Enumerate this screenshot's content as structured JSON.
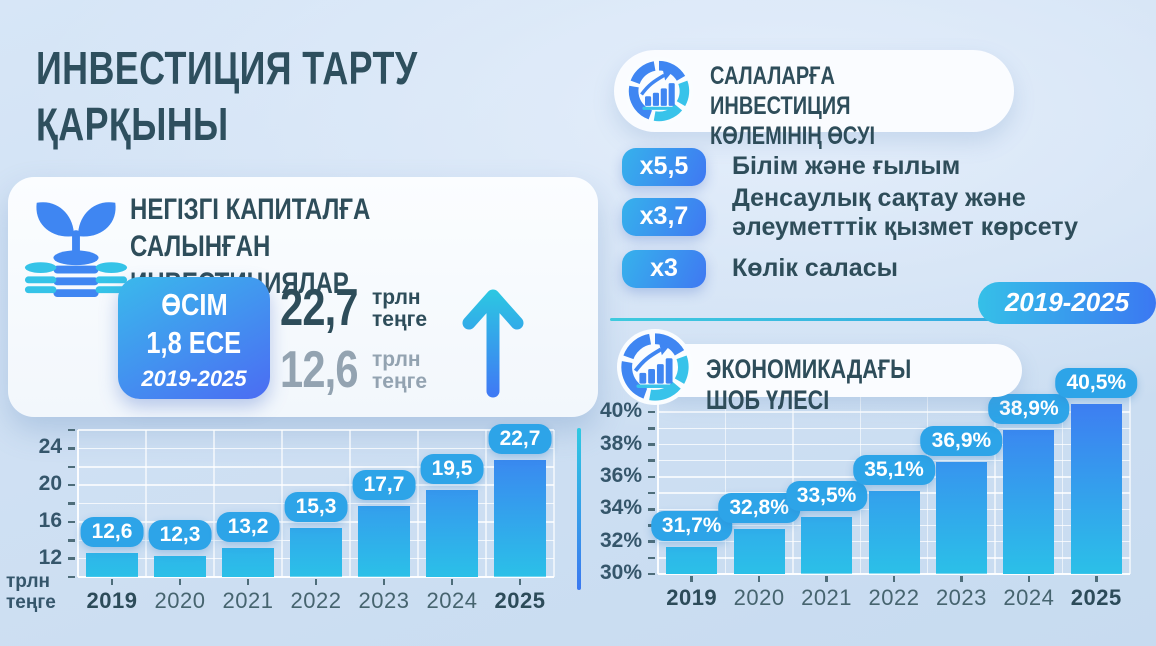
{
  "header": {
    "title_line1": "ИНВЕСТИЦИЯ ТАРТУ",
    "title_line2": "ҚАРҚЫНЫ"
  },
  "investment_card": {
    "title_line1": "НЕГІЗГІ КАПИТАЛҒА САЛЫНҒАН",
    "title_line2": "ИНВЕСТИЦИЯЛАР",
    "badge_line1": "ӨСІМ",
    "badge_line2": "1,8 ЕСЕ",
    "badge_period": "2019-2025",
    "current_value": "22,7",
    "current_unit_line1": "трлн",
    "current_unit_line2": "теңге",
    "previous_value": "12,6",
    "previous_unit_line1": "трлн",
    "previous_unit_line2": "теңге"
  },
  "sectors": {
    "header_line1": "САЛАЛАРҒА ИНВЕСТИЦИЯ",
    "header_line2": "КӨЛЕМІНІҢ ӨСУІ",
    "items": [
      {
        "multiplier": "x5,5",
        "label": "Білім және ғылым"
      },
      {
        "multiplier": "x3,7",
        "label": "Денсаулық сақтау және әлеуметттік қызмет көрсету"
      },
      {
        "multiplier": "x3",
        "label": "Көлік саласы"
      }
    ],
    "period": "2019-2025"
  },
  "sme_chart_header": {
    "title": "ЭКОНОМИКАДАҒЫ ШОБ ҮЛЕСІ"
  },
  "colors": {
    "accent_cyan": "#2bc0e8",
    "accent_blue": "#3e7bf2",
    "value_pill_blue": "#2da4e8",
    "heading_teal": "#2e4d5a",
    "muted_gray": "#93a3b1"
  },
  "chart_data": [
    {
      "type": "bar",
      "title": "Негізгі капиталға салынған инвестициялар",
      "ylabel": "трлн теңге",
      "categories": [
        "2019",
        "2020",
        "2021",
        "2022",
        "2023",
        "2024",
        "2025"
      ],
      "values": [
        12.6,
        12.3,
        13.2,
        15.3,
        17.7,
        19.5,
        22.7
      ],
      "value_labels": [
        "12,6",
        "12,3",
        "13,2",
        "15,3",
        "17,7",
        "19,5",
        "22,7"
      ],
      "ylim": [
        10,
        26
      ],
      "grid_step": 2,
      "yticks": [
        {
          "value": 12,
          "label": "12"
        },
        {
          "value": 16,
          "label": "16"
        },
        {
          "value": 20,
          "label": "20"
        },
        {
          "value": 24,
          "label": "24"
        }
      ],
      "emphasized_categories": [
        "2019",
        "2025"
      ],
      "grid": true,
      "legend": "none"
    },
    {
      "type": "bar",
      "title": "ЭКОНОМИКАДАҒЫ ШОБ ҮЛЕСІ",
      "ylabel": "",
      "categories": [
        "2019",
        "2020",
        "2021",
        "2022",
        "2023",
        "2024",
        "2025"
      ],
      "values": [
        31.7,
        32.8,
        33.5,
        35.1,
        36.9,
        38.9,
        40.5
      ],
      "value_labels": [
        "31,7%",
        "32,8%",
        "33,5%",
        "35,1%",
        "36,9%",
        "38,9%",
        "40,5%"
      ],
      "ylim": [
        30,
        41
      ],
      "grid_step": 1,
      "yticks": [
        {
          "value": 30,
          "label": "30%"
        },
        {
          "value": 32,
          "label": "32%"
        },
        {
          "value": 34,
          "label": "34%"
        },
        {
          "value": 36,
          "label": "36%"
        },
        {
          "value": 38,
          "label": "38%"
        },
        {
          "value": 40,
          "label": "40%"
        }
      ],
      "emphasized_categories": [
        "2019",
        "2025"
      ],
      "grid": true,
      "legend": "none"
    }
  ]
}
